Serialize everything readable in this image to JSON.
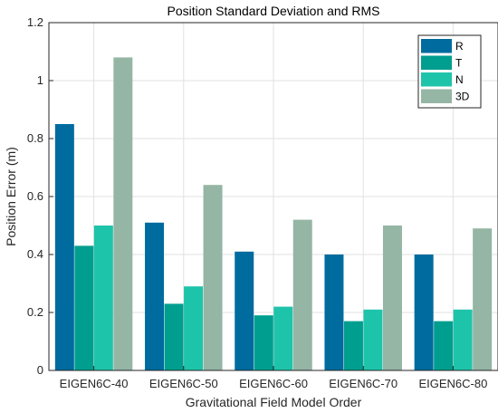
{
  "chart_data": {
    "type": "bar",
    "title": "Position Standard Deviation and RMS",
    "xlabel": "Gravitational Field Model Order",
    "ylabel": "Position Error (m)",
    "ylim": [
      0,
      1.2
    ],
    "yticks": [
      "0",
      "0.2",
      "0.4",
      "0.6",
      "0.8",
      "1",
      "1.2"
    ],
    "grid": true,
    "legend_position": "top-right",
    "categories": [
      "EIGEN6C-40",
      "EIGEN6C-50",
      "EIGEN6C-60",
      "EIGEN6C-70",
      "EIGEN6C-80"
    ],
    "series": [
      {
        "name": "R",
        "color": "#006b9e",
        "values": [
          0.85,
          0.51,
          0.41,
          0.4,
          0.4
        ]
      },
      {
        "name": "T",
        "color": "#009e8f",
        "values": [
          0.43,
          0.23,
          0.19,
          0.17,
          0.17
        ]
      },
      {
        "name": "N",
        "color": "#1ec4aa",
        "values": [
          0.5,
          0.29,
          0.22,
          0.21,
          0.21
        ]
      },
      {
        "name": "3D",
        "color": "#95b5a5",
        "values": [
          1.08,
          0.64,
          0.52,
          0.5,
          0.49
        ]
      }
    ]
  }
}
